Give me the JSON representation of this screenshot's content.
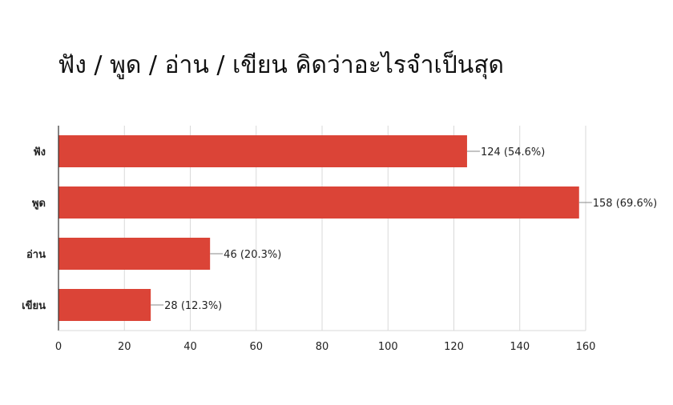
{
  "chart_data": {
    "type": "bar",
    "orientation": "horizontal",
    "title": "ฟัง / พูด / อ่าน / เขียน คิดว่าอะไรจำเป็นสุด",
    "categories": [
      "ฟัง",
      "พูด",
      "อ่าน",
      "เขียน"
    ],
    "values": [
      124,
      158,
      46,
      28
    ],
    "data_labels": [
      "124 (54.6%)",
      "158 (69.6%)",
      "46 (20.3%)",
      "28 (12.3%)"
    ],
    "xlim": [
      0,
      160
    ],
    "xticks": [
      "0",
      "20",
      "40",
      "60",
      "80",
      "100",
      "120",
      "140",
      "160"
    ],
    "grid": "vertical",
    "bar_color": "#db4437",
    "xlabel": "",
    "ylabel": ""
  }
}
